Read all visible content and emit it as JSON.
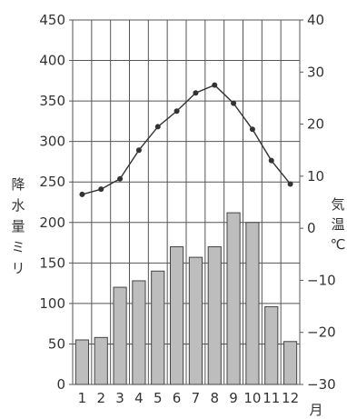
{
  "chart_data": {
    "type": "bar",
    "categories": [
      "1",
      "2",
      "3",
      "4",
      "5",
      "6",
      "7",
      "8",
      "9",
      "10",
      "11",
      "12"
    ],
    "x_unit": "月",
    "series": [
      {
        "values": [
          55,
          58,
          120,
          128,
          140,
          170,
          157,
          170,
          212,
          200,
          96,
          53
        ],
        "type": "bar",
        "axis": "left"
      },
      {
        "values": [
          6.5,
          7.5,
          9.5,
          15,
          19.5,
          22.5,
          26,
          27.5,
          24,
          19,
          13,
          8.5
        ],
        "type": "line",
        "axis": "right"
      }
    ],
    "y_left": {
      "label_chars": [
        "降",
        "水",
        "量",
        "ミ",
        "リ"
      ],
      "ticks": [
        "450",
        "400",
        "350",
        "300",
        "250",
        "200",
        "150",
        "100",
        "50",
        "0"
      ],
      "range": [
        0,
        450
      ]
    },
    "y_right": {
      "label_chars": [
        "気",
        "温",
        "℃"
      ],
      "ticks": [
        "40",
        "30",
        "20",
        "10",
        "0",
        "−10",
        "−20",
        "−30"
      ],
      "range": [
        -30,
        40
      ]
    },
    "grid": true
  }
}
